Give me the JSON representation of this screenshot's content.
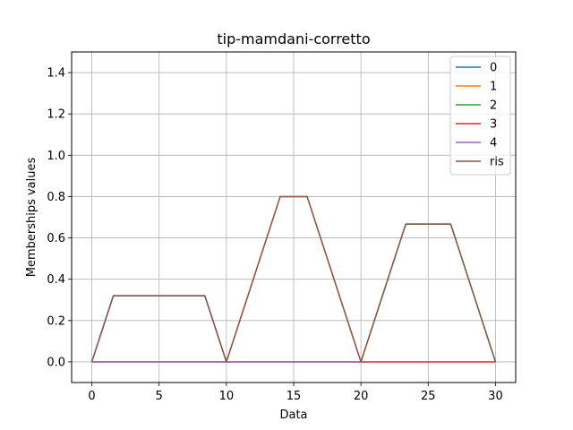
{
  "chart_data": {
    "type": "line",
    "title": "tip-mamdani-corretto",
    "xlabel": "Data",
    "ylabel": "Memberships values",
    "xlim": [
      -1.5,
      31.5
    ],
    "ylim": [
      -0.1,
      1.5
    ],
    "xticks": [
      0,
      5,
      10,
      15,
      20,
      25,
      30
    ],
    "yticks": [
      0.0,
      0.2,
      0.4,
      0.6,
      0.8,
      1.0,
      1.2,
      1.4
    ],
    "xtick_labels": [
      "0",
      "5",
      "10",
      "15",
      "20",
      "25",
      "30"
    ],
    "ytick_labels": [
      "0.0",
      "0.2",
      "0.4",
      "0.6",
      "0.8",
      "1.0",
      "1.2",
      "1.4"
    ],
    "grid": true,
    "legend_position": "top-right",
    "series": [
      {
        "name": "0",
        "color": "#1f77b4",
        "x": [
          0,
          1.6,
          8.4,
          10
        ],
        "y": [
          0,
          0.32,
          0.32,
          0
        ]
      },
      {
        "name": "1",
        "color": "#ff7f0e",
        "x": [
          10,
          14,
          16,
          20
        ],
        "y": [
          0,
          0.8,
          0.8,
          0
        ]
      },
      {
        "name": "2",
        "color": "#2ca02c",
        "x": [
          20,
          23.33,
          26.67,
          30
        ],
        "y": [
          0,
          0.667,
          0.667,
          0
        ]
      },
      {
        "name": "3",
        "color": "#d62728",
        "x": [
          0,
          30
        ],
        "y": [
          0,
          0
        ]
      },
      {
        "name": "4",
        "color": "#9467bd",
        "x": [
          0,
          20
        ],
        "y": [
          0,
          0
        ]
      },
      {
        "name": "ris",
        "color": "#8c564b",
        "x": [
          0,
          1.6,
          8.4,
          10,
          14,
          16,
          20,
          23.33,
          26.67,
          30
        ],
        "y": [
          0,
          0.32,
          0.32,
          0,
          0.8,
          0.8,
          0,
          0.667,
          0.667,
          0
        ]
      }
    ]
  }
}
